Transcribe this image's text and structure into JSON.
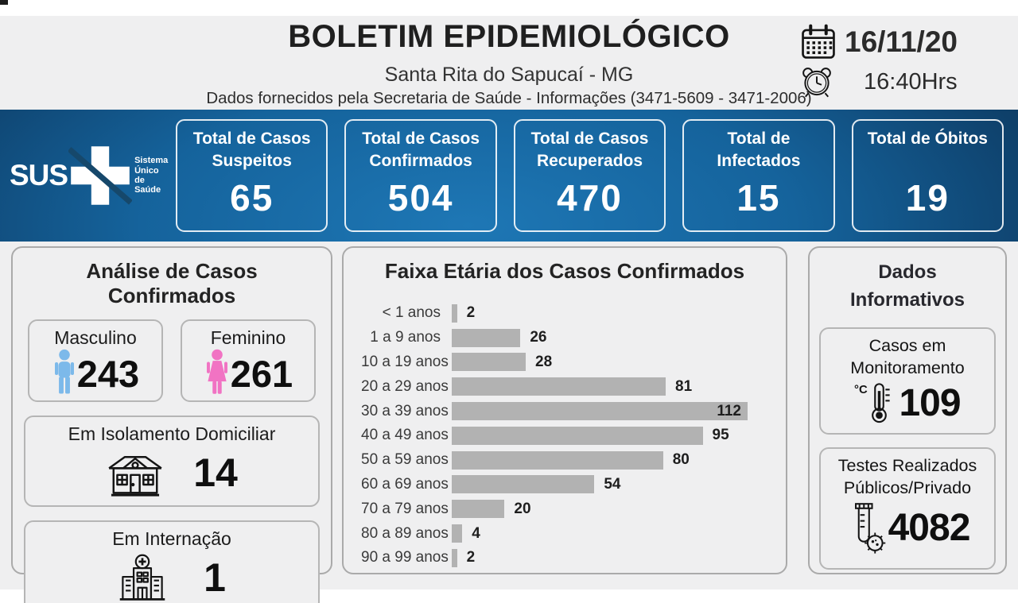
{
  "header": {
    "title": "BOLETIM EPIDEMIOLÓGICO",
    "subtitle": "Santa Rita do Sapucaí - MG",
    "info_line": "Dados fornecidos pela Secretaria de Saúde - Informações (3471-5609 - 3471-2006)",
    "date": "16/11/20",
    "time": "16:40Hrs"
  },
  "sus_logo": {
    "text": "SUS",
    "tagline": [
      "Sistema",
      "Único",
      "de Saúde"
    ]
  },
  "summary_cards": [
    {
      "label": "Total de Casos Suspeitos",
      "value": "65"
    },
    {
      "label": "Total de Casos Confirmados",
      "value": "504"
    },
    {
      "label": "Total de Casos Recuperados",
      "value": "470"
    },
    {
      "label": "Total de Infectados",
      "value": "15"
    },
    {
      "label": "Total de Óbitos",
      "value": "19"
    }
  ],
  "analysis": {
    "title": "Análise de Casos Confirmados",
    "male": {
      "label": "Masculino",
      "value": "243"
    },
    "female": {
      "label": "Feminino",
      "value": "261"
    },
    "isolation": {
      "label": "Em Isolamento Domiciliar",
      "value": "14"
    },
    "hospitalized": {
      "label": "Em Internação",
      "value": "1"
    }
  },
  "chart_data": {
    "type": "bar",
    "orientation": "horizontal",
    "title": "Faixa Etária dos Casos Confirmados",
    "categories": [
      "< 1 anos",
      "1 a 9 anos",
      "10 a 19 anos",
      "20 a 29 anos",
      "30 a 39 anos",
      "40 a 49 anos",
      "50 a 59 anos",
      "60 a 69 anos",
      "70 a 79 anos",
      "80 a 89 anos",
      "90 a 99 anos"
    ],
    "values": [
      2,
      26,
      28,
      81,
      112,
      95,
      80,
      54,
      20,
      4,
      2
    ],
    "xlim": [
      0,
      112
    ],
    "grid": false,
    "value_labels": true
  },
  "informative": {
    "title_lines": [
      "Dados",
      "Informativos"
    ],
    "monitoring": {
      "label_lines": [
        "Casos em",
        "Monitoramento"
      ],
      "value": "109"
    },
    "tests": {
      "label_lines": [
        "Testes Realizados",
        "Públicos/Privado"
      ],
      "value": "4082"
    }
  },
  "colors": {
    "banner_center": "#1e77b5",
    "banner_edge": "#0b2b49",
    "bar_fill": "#b2b2b2",
    "male_icon": "#7cb9ea",
    "female_icon": "#f173c3",
    "page_bg": "#efeff0",
    "card_border": "#b5b5b5",
    "icon_stroke": "#141414"
  }
}
